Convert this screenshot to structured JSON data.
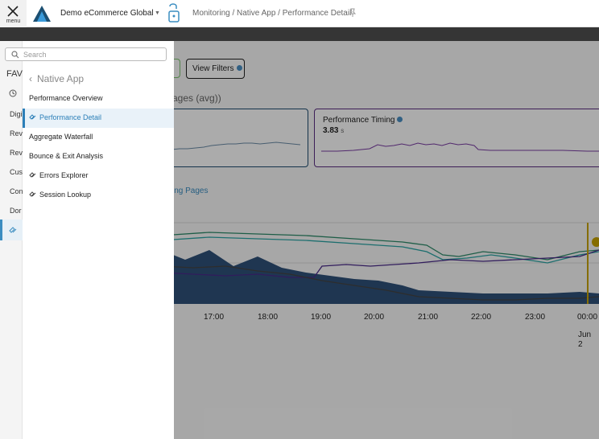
{
  "header": {
    "menu_label": "menu",
    "account": "Demo eCommerce Global",
    "breadcrumb": "Monitoring / Native App / Performance Detail"
  },
  "toolbar": {
    "view_filters": "View Filters"
  },
  "content": {
    "section_title": "ages (avg))",
    "card_b_title": "Performance Timing",
    "card_b_value": "3.83",
    "card_b_unit": "s",
    "link_text": "ing Pages",
    "time_ticks": [
      "17:00",
      "18:00",
      "19:00",
      "20:00",
      "21:00",
      "22:00",
      "23:00",
      "00:00"
    ],
    "date_label": "Jun 2"
  },
  "sidebar": {
    "search_placeholder": "Search",
    "rail": [
      "FAV",
      "Digi",
      "Rev",
      "Rev",
      "Cus",
      "Con",
      "Dor"
    ],
    "back_label": "Native App",
    "items": [
      {
        "label": "Performance Overview",
        "icon": "none"
      },
      {
        "label": "Performance Detail",
        "icon": "link-icon",
        "active": true
      },
      {
        "label": "Aggregate Waterfall",
        "icon": "none"
      },
      {
        "label": "Bounce & Exit Analysis",
        "icon": "none"
      },
      {
        "label": "Errors Explorer",
        "icon": "link-icon"
      },
      {
        "label": "Session Lookup",
        "icon": "link-icon"
      }
    ]
  },
  "colors": {
    "accent": "#2b7fb8",
    "dark_band": "#353535",
    "card_a_border": "#1f4c70",
    "card_b_border": "#5a2d82"
  }
}
